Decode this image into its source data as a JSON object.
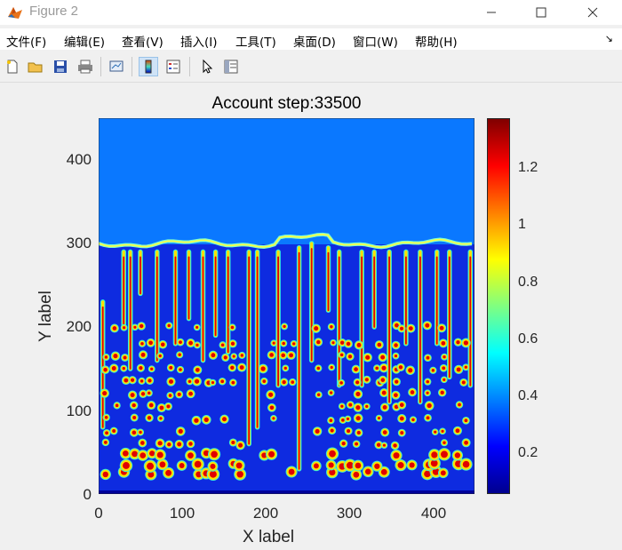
{
  "window": {
    "title": "Figure 2",
    "minimize_icon": "minimize-icon",
    "maximize_icon": "maximize-icon",
    "close_icon": "close-icon"
  },
  "menu": {
    "items": [
      "文件(F)",
      "编辑(E)",
      "查看(V)",
      "插入(I)",
      "工具(T)",
      "桌面(D)",
      "窗口(W)",
      "帮助(H)"
    ],
    "overflow_icon": "dock-arrow-icon"
  },
  "toolbar": {
    "icons": [
      "new-figure-icon",
      "open-file-icon",
      "save-icon",
      "print-icon",
      "link-plot-icon",
      "colorbar-icon",
      "legend-icon",
      "pointer-icon",
      "property-inspector-icon"
    ]
  },
  "figure": {
    "title": "Account step:33500",
    "xlabel": "X label",
    "ylabel": "Y label",
    "xticks": [
      "0",
      "100",
      "200",
      "300",
      "400"
    ],
    "yticks": [
      "0",
      "100",
      "200",
      "300",
      "400"
    ],
    "colorbar_ticks": [
      "0.2",
      "0.4",
      "0.6",
      "0.8",
      "1",
      "1.2"
    ]
  },
  "chart_data": {
    "type": "heatmap",
    "title": "Account step:33500",
    "xlabel": "X label",
    "ylabel": "Y label",
    "xlim": [
      0,
      450
    ],
    "ylim": [
      0,
      450
    ],
    "xticks": [
      0,
      100,
      200,
      300,
      400
    ],
    "yticks": [
      0,
      100,
      200,
      300,
      400
    ],
    "colormap": "jet",
    "clim": [
      0.06,
      1.37
    ],
    "colorbar_ticks": [
      0.2,
      0.4,
      0.6,
      0.8,
      1,
      1.2
    ],
    "front_y": 300,
    "background_value": 0.3,
    "upper_region_value": 0.3,
    "columns": [
      {
        "x": 5,
        "top": 230,
        "bottom": 80
      },
      {
        "x": 30,
        "top": 290,
        "bottom": 200
      },
      {
        "x": 38,
        "top": 290,
        "bottom": 150
      },
      {
        "x": 50,
        "top": 290,
        "bottom": 240
      },
      {
        "x": 70,
        "top": 290,
        "bottom": 160
      },
      {
        "x": 92,
        "top": 290,
        "bottom": 180
      },
      {
        "x": 108,
        "top": 290,
        "bottom": 210
      },
      {
        "x": 125,
        "top": 290,
        "bottom": 160
      },
      {
        "x": 140,
        "top": 290,
        "bottom": 190
      },
      {
        "x": 155,
        "top": 290,
        "bottom": 170
      },
      {
        "x": 180,
        "top": 290,
        "bottom": 60
      },
      {
        "x": 190,
        "top": 290,
        "bottom": 80
      },
      {
        "x": 215,
        "top": 290,
        "bottom": 130
      },
      {
        "x": 240,
        "top": 295,
        "bottom": 30
      },
      {
        "x": 255,
        "top": 300,
        "bottom": 160
      },
      {
        "x": 275,
        "top": 295,
        "bottom": 220
      },
      {
        "x": 288,
        "top": 290,
        "bottom": 130
      },
      {
        "x": 315,
        "top": 290,
        "bottom": 130
      },
      {
        "x": 330,
        "top": 290,
        "bottom": 200
      },
      {
        "x": 348,
        "top": 290,
        "bottom": 110
      },
      {
        "x": 368,
        "top": 290,
        "bottom": 180
      },
      {
        "x": 385,
        "top": 290,
        "bottom": 110
      },
      {
        "x": 405,
        "top": 290,
        "bottom": 180
      },
      {
        "x": 420,
        "top": 290,
        "bottom": 140
      },
      {
        "x": 445,
        "top": 290,
        "bottom": 130
      }
    ],
    "droplet_rows_y": [
      25,
      35,
      48,
      60,
      75,
      90,
      105,
      120,
      135,
      150,
      165,
      180,
      200
    ],
    "droplet_x_positions": [
      8,
      20,
      32,
      42,
      52,
      62,
      75,
      85,
      98,
      110,
      118,
      130,
      138,
      150,
      160,
      170,
      198,
      208,
      222,
      232,
      262,
      280,
      292,
      300,
      310,
      322,
      335,
      342,
      355,
      362,
      375,
      395,
      402,
      412,
      430,
      438
    ]
  }
}
